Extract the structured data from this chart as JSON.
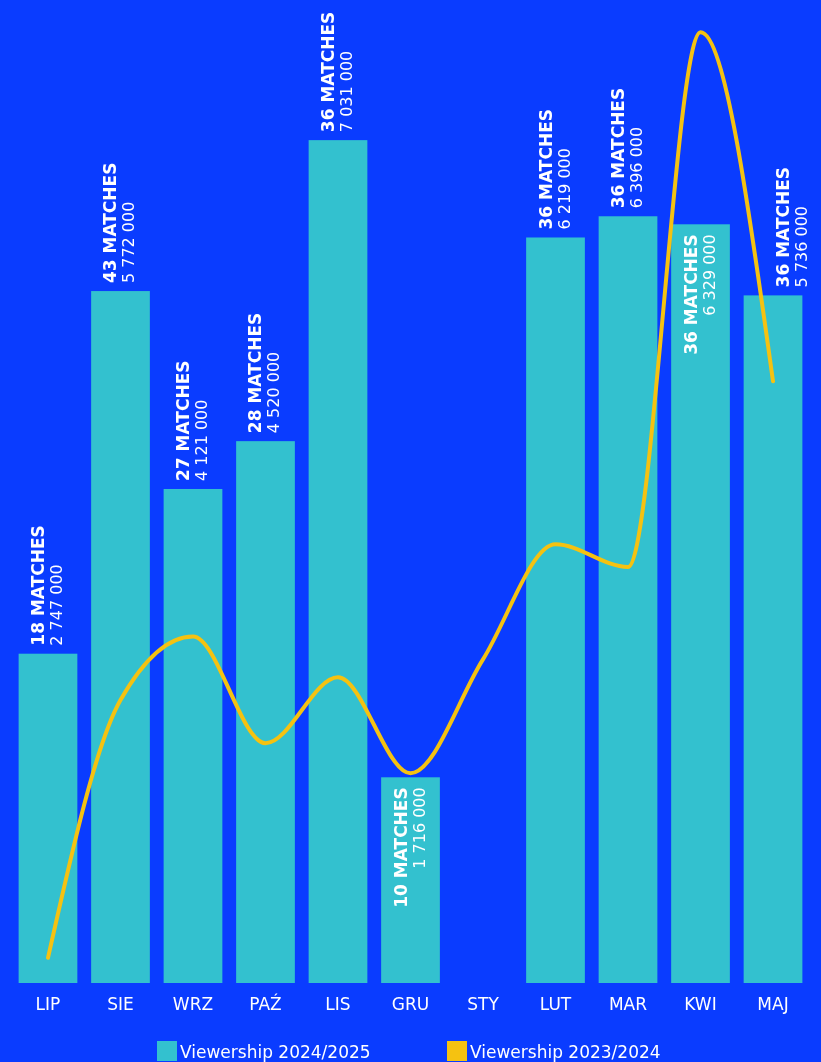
{
  "chart_data": {
    "type": "bar",
    "categories": [
      "LIP",
      "SIE",
      "WRZ",
      "PAŹ",
      "LIS",
      "GRU",
      "STY",
      "LUT",
      "MAR",
      "KWI",
      "MAJ"
    ],
    "series": [
      {
        "name": "Viewership 2024/2025",
        "color": "#33c1cf",
        "values": [
          2747000,
          5772000,
          4121000,
          4520000,
          7031000,
          1716000,
          null,
          6219000,
          6396000,
          6329000,
          5736000
        ],
        "value_labels": [
          "2 747 000",
          "5 772 000",
          "4 121 000",
          "4 520 000",
          "7 031 000",
          "1 716 000",
          null,
          "6 219 000",
          "6 396 000",
          "6 329 000",
          "5 736 000"
        ]
      },
      {
        "name": "Viewership 2023/2024",
        "type": "line",
        "color": "#f5c211",
        "values": [
          210000,
          2360000,
          2890000,
          2000000,
          2550000,
          1750000,
          2700000,
          3660000,
          3470000,
          7930000,
          5020000
        ]
      }
    ],
    "annotations": [
      {
        "text": "18 MATCHES",
        "x": "LIP",
        "y": 2747000
      },
      {
        "text": "43 MATCHES",
        "x": "SIE",
        "y": 5772000
      },
      {
        "text": "27 MATCHES",
        "x": "WRZ",
        "y": 4121000
      },
      {
        "text": "28 MATCHES",
        "x": "PAŹ",
        "y": 4520000
      },
      {
        "text": "36 MATCHES",
        "x": "LIS",
        "y": 7031000
      },
      {
        "text": "10 MATCHES",
        "x": "GRU",
        "y": 1716000
      },
      {
        "text": "36 MATCHES",
        "x": "LUT",
        "y": 6219000
      },
      {
        "text": "36 MATCHES",
        "x": "MAR",
        "y": 6396000
      },
      {
        "text": "36 MATCHES",
        "x": "KWI",
        "y": 6329000
      },
      {
        "text": "36 MATCHES",
        "x": "MAJ",
        "y": 5736000
      }
    ],
    "ylim": [
      0,
      8200000
    ],
    "tick_labels": "x",
    "legend": "bottom"
  }
}
